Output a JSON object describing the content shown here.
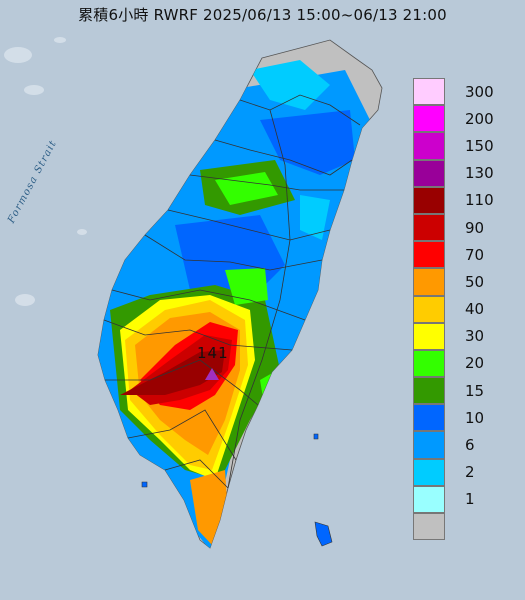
{
  "map": {
    "title": "累積6小時 RWRF 2025/06/13 15:00~06/13 21:00",
    "water_label": "Formosa Strait",
    "peak": {
      "value": "141",
      "marker_color": "#a030c0"
    }
  },
  "legend": {
    "items": [
      {
        "label": "300",
        "color": "#ffccff"
      },
      {
        "label": "200",
        "color": "#ff00ff"
      },
      {
        "label": "150",
        "color": "#cc00cc"
      },
      {
        "label": "130",
        "color": "#990099"
      },
      {
        "label": "110",
        "color": "#990000"
      },
      {
        "label": "90",
        "color": "#cc0000"
      },
      {
        "label": "70",
        "color": "#ff0000"
      },
      {
        "label": "50",
        "color": "#ff9900"
      },
      {
        "label": "40",
        "color": "#ffcc00"
      },
      {
        "label": "30",
        "color": "#ffff00"
      },
      {
        "label": "20",
        "color": "#33ff00"
      },
      {
        "label": "15",
        "color": "#339900"
      },
      {
        "label": "10",
        "color": "#0066ff"
      },
      {
        "label": "6",
        "color": "#0099ff"
      },
      {
        "label": "2",
        "color": "#00ccff"
      },
      {
        "label": "1",
        "color": "#99ffff"
      },
      {
        "label": "",
        "color": "#c0c0c0"
      }
    ]
  }
}
